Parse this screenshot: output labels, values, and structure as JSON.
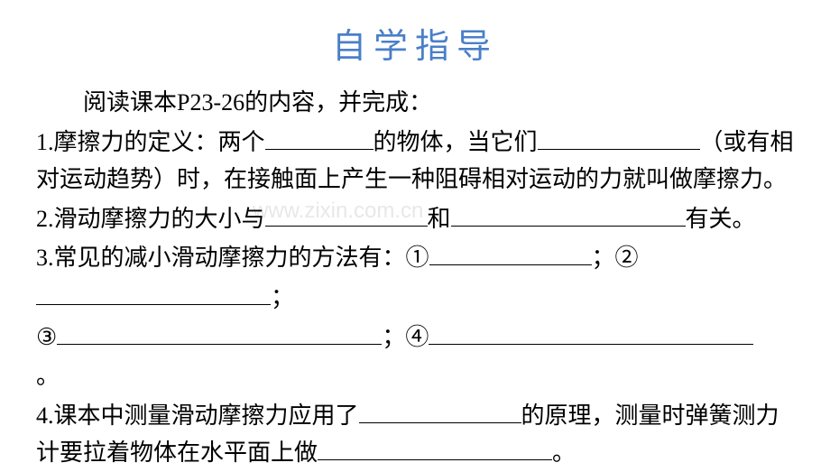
{
  "title": "自学指导",
  "instruction": "阅读课本P23-26的内容，并完成：",
  "items": {
    "q1_part1": "1.摩擦力的定义：两个",
    "q1_part2": "的物体，当它们",
    "q1_part3": "（或有相对运动趋势）时，在接触面上产生一种阻碍相对运动的力就叫做摩擦力。",
    "q2_part1": "2.滑动摩擦力的大小与",
    "q2_part2": "和",
    "q2_part3": "有关。",
    "q3_part1": "3.常见的减小滑动摩擦力的方法有：①",
    "q3_part2": "；②",
    "q3_part3": "；",
    "q3_part4": "③",
    "q3_part5": "；④",
    "q3_part6": "。",
    "q4_part1": "4.课本中测量滑动摩擦力应用了",
    "q4_part2": "的原理，测量时弹簧测力计要拉着物体在水平面上做",
    "q4_part3": "。"
  },
  "watermark": "www.zixin.com.cn",
  "colors": {
    "title_color": "#4a7fc9",
    "text_color": "#000000",
    "background_color": "#ffffff",
    "watermark_color": "#e8e8e8"
  },
  "typography": {
    "title_fontsize": 38,
    "body_fontsize": 26,
    "title_font": "KaiTi",
    "body_font": "KaiTi"
  }
}
